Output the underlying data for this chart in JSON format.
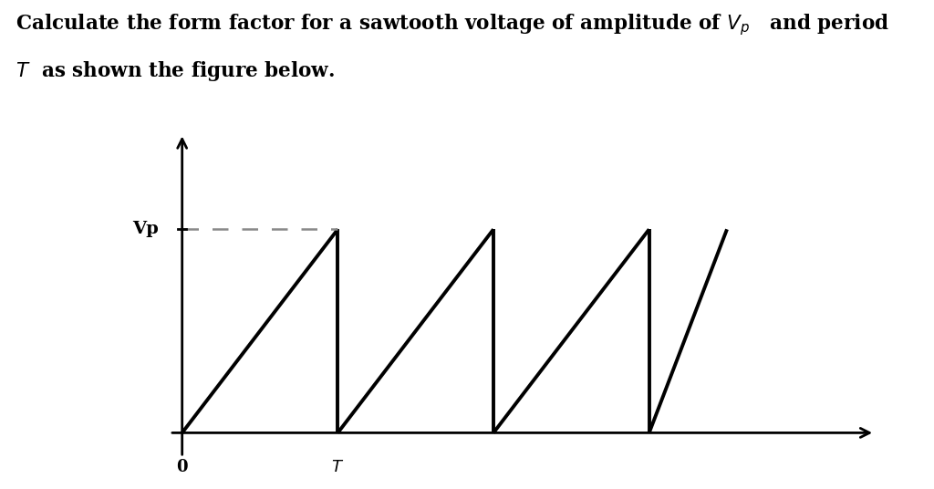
{
  "background_color": "#ffffff",
  "text_color": "#000000",
  "sawtooth_color": "#000000",
  "dashed_color": "#888888",
  "vp_label": "Vp",
  "x_label_0": "0",
  "x_label_T": "T",
  "period": 1.0,
  "amplitude": 1.0,
  "linewidth": 2.8,
  "axis_linewidth": 2.0,
  "text_fontsize": 15.5
}
